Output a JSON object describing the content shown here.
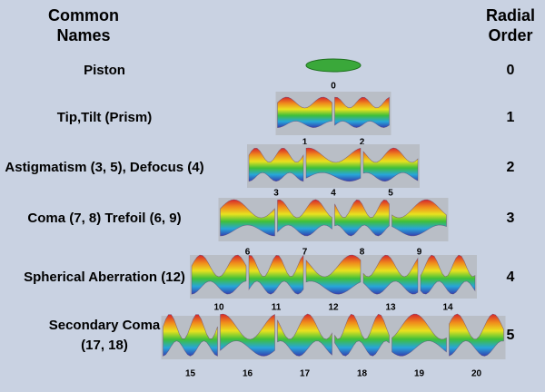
{
  "header": {
    "left": [
      "Common",
      "Names"
    ],
    "right": [
      "Radial",
      "Order"
    ]
  },
  "rows": [
    {
      "name_lines": [
        "Piston"
      ],
      "order": 0,
      "modes": [
        0
      ]
    },
    {
      "name_lines": [
        "Tip,Tilt (Prism)"
      ],
      "order": 1,
      "modes": [
        1,
        2
      ]
    },
    {
      "name_lines": [
        "Astigmatism (3, 5), Defocus (4)"
      ],
      "order": 2,
      "modes": [
        3,
        4,
        5
      ]
    },
    {
      "name_lines": [
        "Coma (7, 8) Trefoil (6, 9)"
      ],
      "order": 3,
      "modes": [
        6,
        7,
        8,
        9
      ]
    },
    {
      "name_lines": [
        "Spherical Aberration (12)"
      ],
      "order": 4,
      "modes": [
        10,
        11,
        12,
        13,
        14
      ]
    },
    {
      "name_lines": [
        "Secondary Coma",
        "(17, 18)"
      ],
      "order": 5,
      "modes": [
        15,
        16,
        17,
        18,
        19,
        20
      ]
    }
  ]
}
